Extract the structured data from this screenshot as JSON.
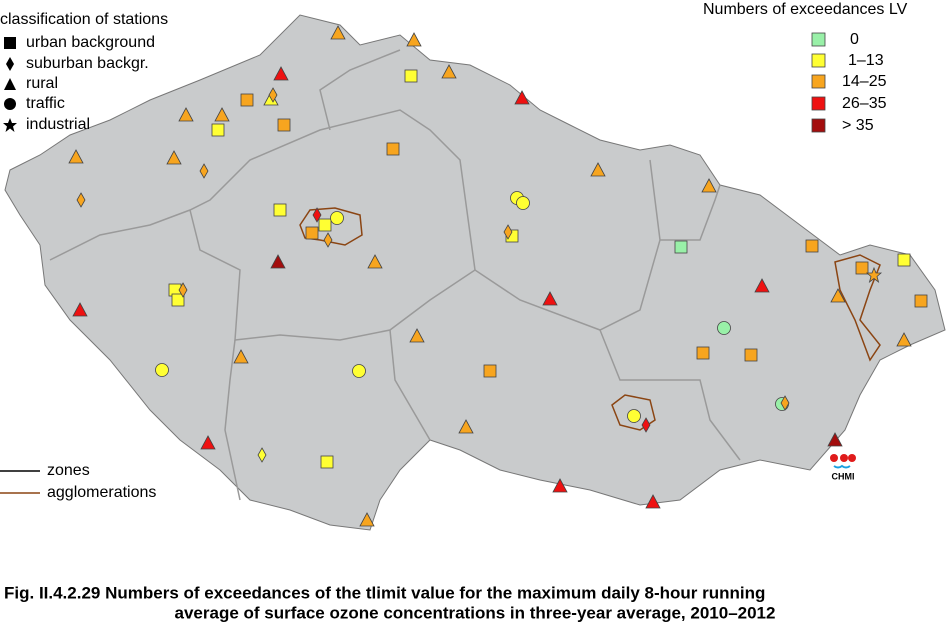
{
  "station_legend": {
    "title": "classification of stations",
    "items": [
      "urban background",
      "suburban backgr.",
      "rural",
      "traffic",
      "industrial"
    ]
  },
  "exceedance_legend": {
    "title": "Numbers of exceedances LV",
    "items": [
      "0",
      "1–13",
      "14–25",
      "26–35",
      "> 35"
    ]
  },
  "lines_legend": {
    "items": [
      "zones",
      "agglomerations"
    ]
  },
  "logo": "CHMI",
  "caption": {
    "line1": "Fig. II.4.2.29  Numbers of exceedances of the tlimit value for the maximum daily 8-hour running",
    "line2": "average of surface ozone concentrations in three-year average, 2010–2012"
  }
}
